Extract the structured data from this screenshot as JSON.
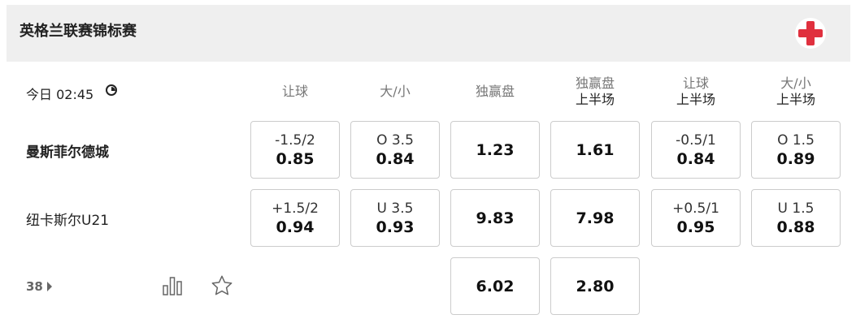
{
  "league": {
    "title": "英格兰联赛锦标赛",
    "flag_icon": "england-flag-icon"
  },
  "match": {
    "time": "今日 02:45",
    "home": "曼斯菲尔德城",
    "away": "纽卡斯尔U21",
    "more_count": "38"
  },
  "columns": [
    {
      "label": "让球",
      "sub": ""
    },
    {
      "label": "大/小",
      "sub": ""
    },
    {
      "label": "独赢盘",
      "sub": ""
    },
    {
      "label": "独赢盘",
      "sub": "上半场"
    },
    {
      "label": "让球",
      "sub": "上半场"
    },
    {
      "label": "大/小",
      "sub": "上半场"
    }
  ],
  "rows": [
    [
      {
        "line": "-1.5/2",
        "odds": "0.85"
      },
      {
        "line": "O 3.5",
        "odds": "0.84"
      },
      {
        "line": "",
        "odds": "1.23"
      },
      {
        "line": "",
        "odds": "1.61"
      },
      {
        "line": "-0.5/1",
        "odds": "0.84"
      },
      {
        "line": "O 1.5",
        "odds": "0.89"
      }
    ],
    [
      {
        "line": "+1.5/2",
        "odds": "0.94"
      },
      {
        "line": "U 3.5",
        "odds": "0.93"
      },
      {
        "line": "",
        "odds": "9.83"
      },
      {
        "line": "",
        "odds": "7.98"
      },
      {
        "line": "+0.5/1",
        "odds": "0.95"
      },
      {
        "line": "U 1.5",
        "odds": "0.88"
      }
    ],
    [
      null,
      null,
      {
        "line": "",
        "odds": "6.02"
      },
      {
        "line": "",
        "odds": "2.80"
      },
      null,
      null
    ]
  ],
  "colors": {
    "flag_red": "#e0303e",
    "header_bg": "#efefef"
  }
}
